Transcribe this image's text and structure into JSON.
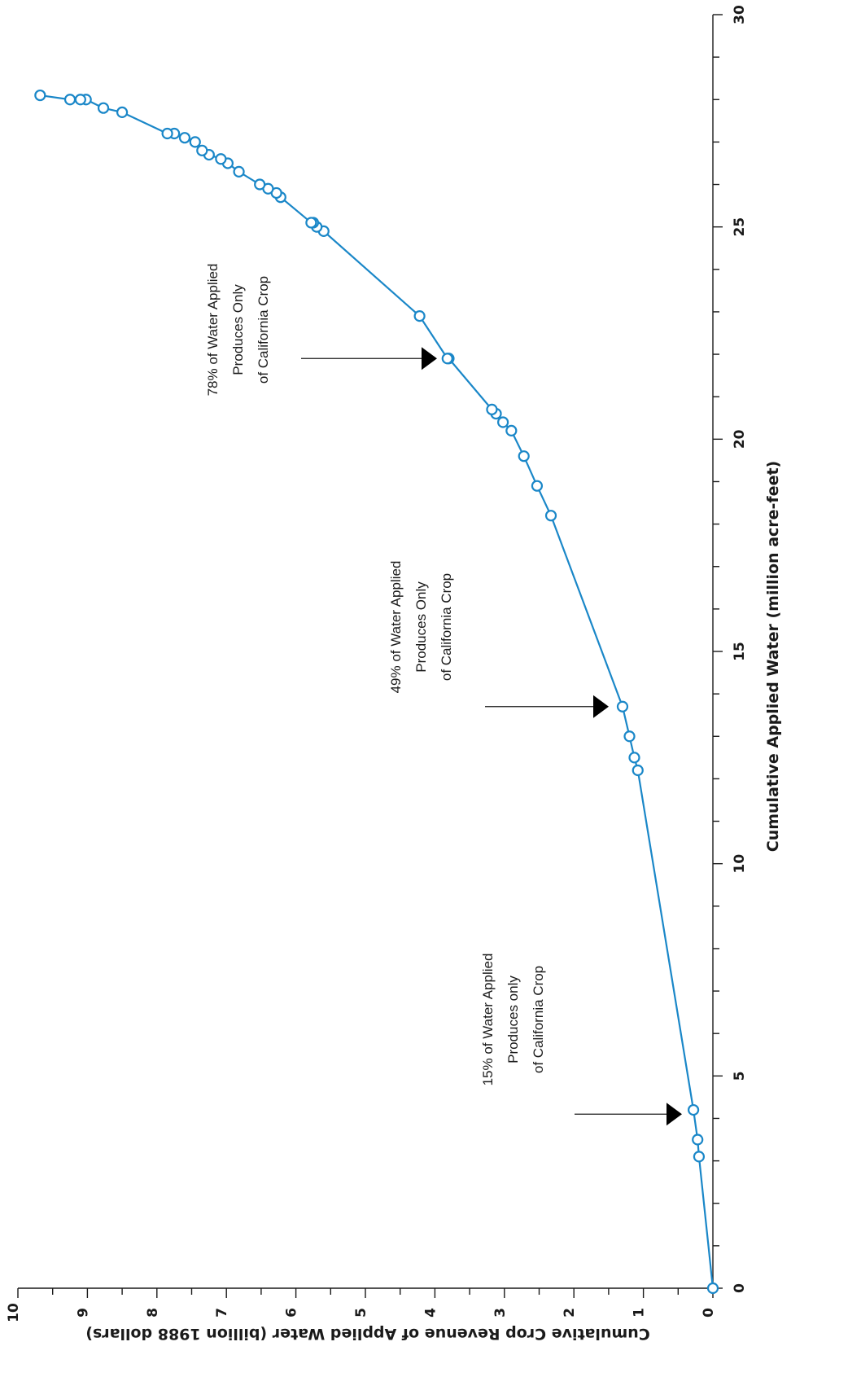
{
  "chart_data": {
    "type": "line",
    "xlabel": "Cumulative Applied Water (million acre-feet)",
    "ylabel": "Cumulative Crop Revenue of Applied Water  (billion 1988 dollars)",
    "xlim": [
      0,
      30
    ],
    "ylim": [
      0,
      10
    ],
    "x_ticks": [
      "0",
      "5",
      "10",
      "15",
      "20",
      "25",
      "30"
    ],
    "y_ticks": [
      "0",
      "1",
      "2",
      "3",
      "4",
      "5",
      "6",
      "7",
      "8",
      "9",
      "10"
    ],
    "grid": false,
    "color": "#1a87c8",
    "series": [
      {
        "marker": "open-circle",
        "x": [
          0,
          3.1,
          3.5,
          4.2,
          12.2,
          12.5,
          13.0,
          13.7,
          18.2,
          18.9,
          19.6,
          20.2,
          20.4,
          20.6,
          20.7,
          21.9,
          21.9,
          22.9,
          24.9,
          25.0,
          25.1,
          25.1,
          25.7,
          25.8,
          25.9,
          26.0,
          26.3,
          26.5,
          26.6,
          26.7,
          26.8,
          27.0,
          27.1,
          27.2,
          27.2,
          27.7,
          27.8,
          28.0,
          28.0,
          28.0,
          28.1
        ],
        "y": [
          0,
          0.2,
          0.22,
          0.28,
          1.08,
          1.13,
          1.2,
          1.3,
          2.33,
          2.53,
          2.72,
          2.9,
          3.02,
          3.12,
          3.18,
          3.8,
          3.82,
          4.22,
          5.6,
          5.7,
          5.75,
          5.78,
          6.22,
          6.28,
          6.4,
          6.52,
          6.82,
          6.98,
          7.08,
          7.25,
          7.35,
          7.45,
          7.6,
          7.75,
          7.85,
          8.5,
          8.77,
          9.02,
          9.1,
          9.25,
          9.68
        ]
      }
    ],
    "annotations": [
      {
        "lines": [
          "15% of Water Applied",
          "Produces only",
          "of California Crop"
        ],
        "arrow_at_x": 4.1
      },
      {
        "lines": [
          "49% of Water Applied",
          "Produces Only",
          "of California Crop"
        ],
        "arrow_at_x": 13.7
      },
      {
        "lines": [
          "78% of Water Applied",
          "Produces Only",
          "of California Crop"
        ],
        "arrow_at_x": 21.9
      }
    ]
  }
}
